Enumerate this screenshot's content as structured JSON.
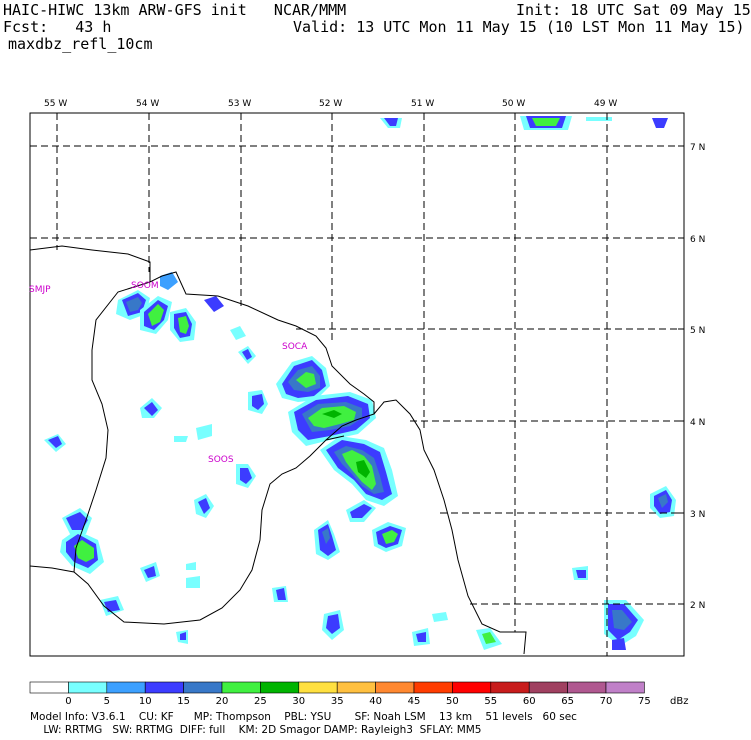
{
  "header": {
    "title": "HAIC-HIWC 13km ARW-GFS init   NCAR/MMM",
    "init": "Init: 18 UTC Sat 09 May 15",
    "fcst": "Fcst:   43 h",
    "valid": "Valid: 13 UTC Mon 11 May 15 (10 LST Mon 11 May 15)",
    "field": "maxdbz_refl_10cm"
  },
  "map": {
    "lon_labels": [
      "55 W",
      "54 W",
      "53 W",
      "52 W",
      "51 W",
      "50 W",
      "49 W"
    ],
    "lat_labels": [
      "7 N",
      "6 N",
      "5 N",
      "4 N",
      "3 N",
      "2 N"
    ],
    "stations": [
      "SMJP",
      "SOOM",
      "SOCA",
      "SOOS"
    ],
    "label_color": "#cc00cc"
  },
  "colorbar": {
    "ticks": [
      "0",
      "5",
      "10",
      "15",
      "20",
      "25",
      "30",
      "35",
      "40",
      "45",
      "50",
      "55",
      "60",
      "65",
      "70",
      "75"
    ],
    "unit": "dBz",
    "colors": [
      "#ffffff",
      "#78ffff",
      "#3ca0ff",
      "#3c3cff",
      "#3878c8",
      "#40f040",
      "#00b400",
      "#ffe040",
      "#ffc040",
      "#ff8830",
      "#ff3c00",
      "#ff0000",
      "#c81c1c",
      "#a04060",
      "#b05890",
      "#c080c8"
    ]
  },
  "footer": {
    "line1": "Model Info: V3.6.1    CU: KF      MP: Thompson    PBL: YSU       SF: Noah LSM    13 km    51 levels   60 sec",
    "line2": "    LW: RRTMG   SW: RRTMG  DIFF: full    KM: 2D Smagor DAMP: Rayleigh3  SFLAY: MM5"
  }
}
